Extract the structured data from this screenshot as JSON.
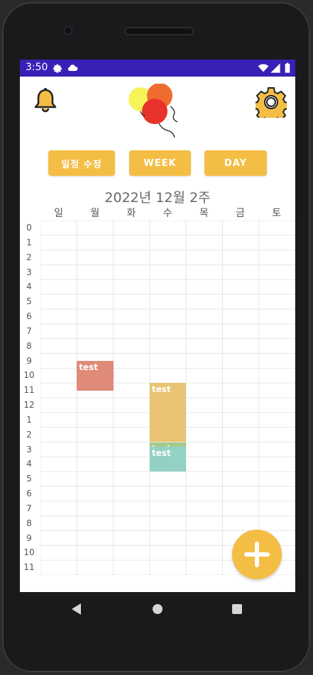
{
  "status": {
    "time": "3:50"
  },
  "buttons": {
    "edit_schedule": "일정 수정",
    "week": "WEEK",
    "day": "DAY"
  },
  "calendar": {
    "title": "2022년 12월 2주",
    "days": [
      "일",
      "월",
      "화",
      "수",
      "목",
      "금",
      "토"
    ],
    "hours": [
      "0",
      "1",
      "2",
      "3",
      "4",
      "5",
      "6",
      "7",
      "8",
      "9",
      "10",
      "11",
      "12",
      "1",
      "2",
      "3",
      "4",
      "5",
      "6",
      "7",
      "8",
      "9",
      "10",
      "11"
    ],
    "events": [
      {
        "label": "test",
        "day_index": 1,
        "start_hour": 9.5,
        "end_hour": 11.5,
        "color": "#e08a78"
      },
      {
        "label": "test",
        "day_index": 3,
        "start_hour": 11.0,
        "end_hour": 15.0,
        "color": "#e8c373"
      },
      {
        "label": "test",
        "day_index": 3,
        "start_hour": 15.0,
        "end_hour": 15.3,
        "color": "#a6c98a"
      },
      {
        "label": "test",
        "day_index": 3,
        "start_hour": 15.3,
        "end_hour": 17.0,
        "color": "#93d1c4"
      }
    ]
  },
  "colors": {
    "statusbar": "#3a1fb7",
    "accent": "#f4be45"
  },
  "icons": {
    "bell": "bell-icon",
    "gear": "gear-icon",
    "add": "plus-icon"
  }
}
